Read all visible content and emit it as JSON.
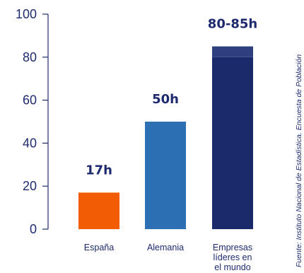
{
  "chart_data": {
    "type": "bar",
    "categories": [
      [
        "España"
      ],
      [
        "Alemania"
      ],
      [
        "Empresas",
        "líderes en",
        "el mundo"
      ]
    ],
    "values": [
      17,
      50,
      85
    ],
    "range_band": {
      "category_index": 2,
      "from": 80,
      "to": 85
    },
    "data_labels": [
      "17h",
      "50h",
      "80-85h"
    ],
    "colors": [
      "#f25c05",
      "#2c6fb3",
      "#1b2a6b"
    ],
    "range_color": "#2e3f7f",
    "axis_color": "#1e2a6e",
    "ylim": [
      0,
      100
    ],
    "yticks": [
      "0",
      "20",
      "40",
      "60",
      "80",
      "100"
    ],
    "grid": false,
    "source": "Fuente: Instituto Nacional de Estadística. Encuesta de Población"
  }
}
